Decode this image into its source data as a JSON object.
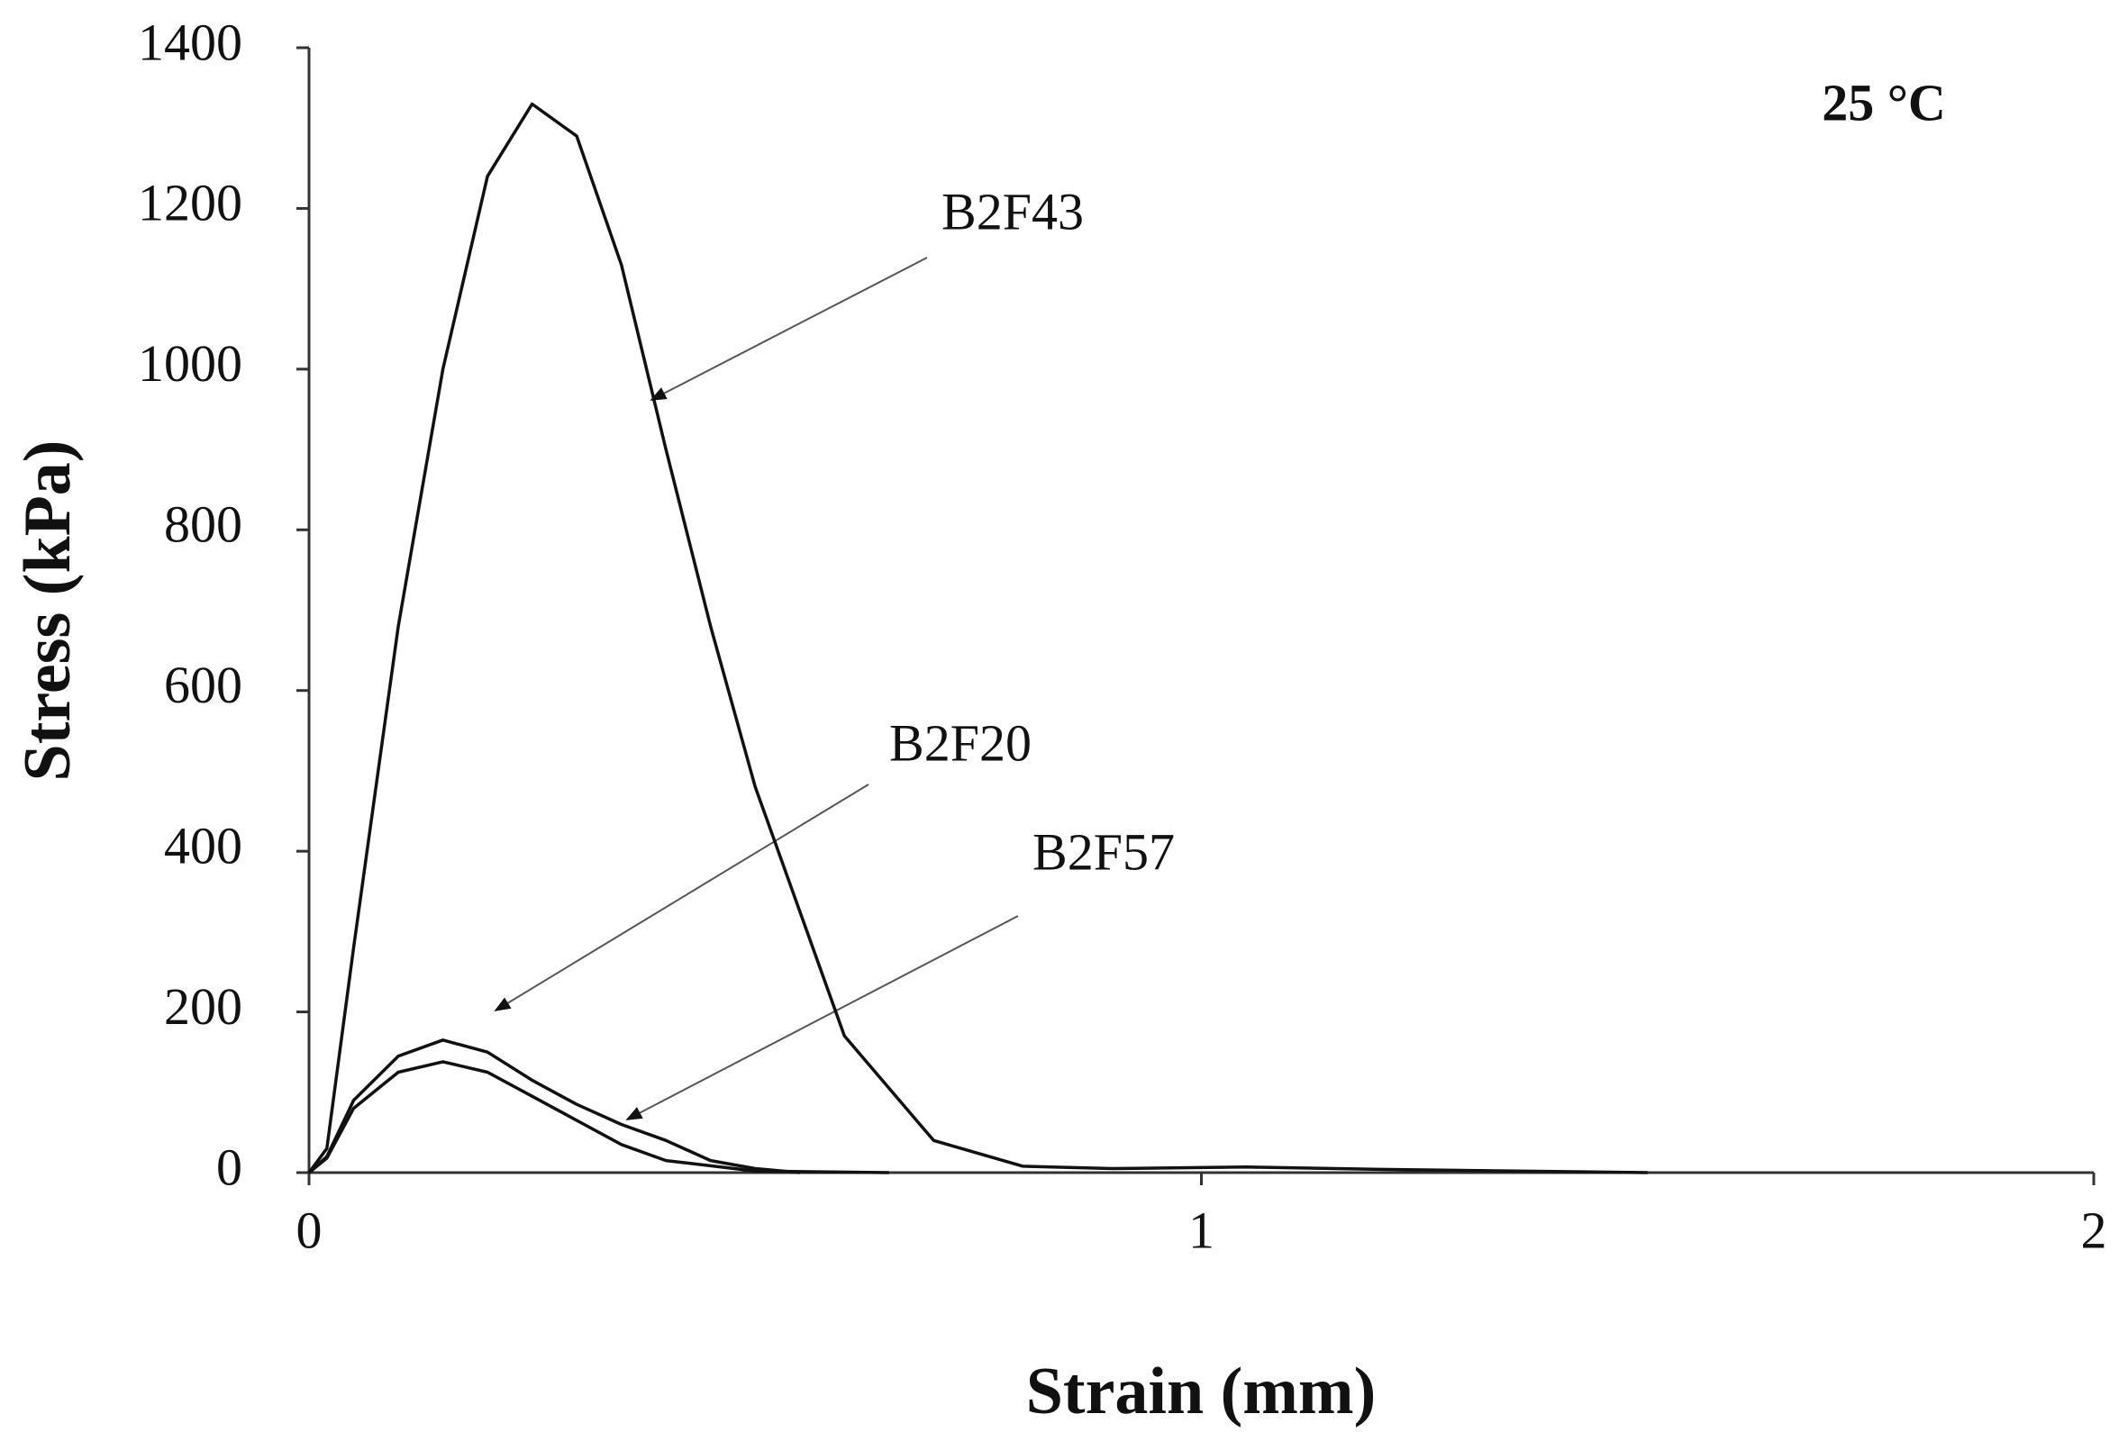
{
  "chart_data": {
    "type": "line",
    "x_label": "Strain (mm)",
    "y_label": "Stress (kPa)",
    "annotation": "25 °C",
    "xlim": [
      0,
      2
    ],
    "xticks": [
      0,
      1,
      2
    ],
    "ylim": [
      0,
      1400
    ],
    "yticks": [
      0,
      200,
      400,
      600,
      800,
      1000,
      1200,
      1400
    ],
    "grid": false,
    "series": [
      {
        "name": "B2F43",
        "color": "#111111",
        "x": [
          0,
          0.02,
          0.05,
          0.1,
          0.15,
          0.2,
          0.25,
          0.3,
          0.35,
          0.4,
          0.45,
          0.5,
          0.6,
          0.7,
          0.8,
          0.9,
          1.05,
          1.2,
          1.5
        ],
        "values": [
          0,
          30,
          280,
          680,
          1000,
          1240,
          1330,
          1290,
          1130,
          900,
          680,
          480,
          170,
          40,
          8,
          5,
          7,
          4,
          0
        ]
      },
      {
        "name": "B2F20",
        "color": "#111111",
        "x": [
          0,
          0.02,
          0.05,
          0.1,
          0.15,
          0.2,
          0.25,
          0.3,
          0.35,
          0.4,
          0.45,
          0.5,
          0.55
        ],
        "values": [
          0,
          20,
          90,
          145,
          165,
          150,
          115,
          85,
          60,
          40,
          15,
          5,
          0
        ]
      },
      {
        "name": "B2F57",
        "color": "#111111",
        "x": [
          0,
          0.02,
          0.05,
          0.1,
          0.15,
          0.2,
          0.25,
          0.3,
          0.35,
          0.4,
          0.5,
          0.65
        ],
        "values": [
          0,
          18,
          80,
          125,
          138,
          125,
          95,
          65,
          35,
          15,
          2,
          0
        ]
      }
    ]
  }
}
